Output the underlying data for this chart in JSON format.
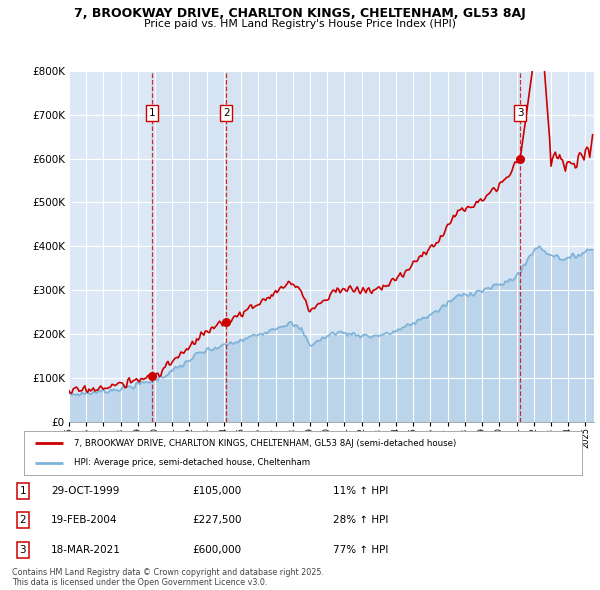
{
  "title_line1": "7, BROOKWAY DRIVE, CHARLTON KINGS, CHELTENHAM, GL53 8AJ",
  "title_line2": "Price paid vs. HM Land Registry's House Price Index (HPI)",
  "background_color": "#ffffff",
  "plot_bg_color": "#dce8f5",
  "grid_color": "#ffffff",
  "purchases": [
    {
      "label": "1",
      "date_num": 1999.83,
      "price": 105000,
      "note": "11% ↑ HPI",
      "date_str": "29-OCT-1999"
    },
    {
      "label": "2",
      "date_num": 2004.13,
      "price": 227500,
      "note": "28% ↑ HPI",
      "date_str": "19-FEB-2004"
    },
    {
      "label": "3",
      "date_num": 2021.21,
      "price": 600000,
      "note": "77% ↑ HPI",
      "date_str": "18-MAR-2021"
    }
  ],
  "legend_line1": "7, BROOKWAY DRIVE, CHARLTON KINGS, CHELTENHAM, GL53 8AJ (semi-detached house)",
  "legend_line2": "HPI: Average price, semi-detached house, Cheltenham",
  "footer": "Contains HM Land Registry data © Crown copyright and database right 2025.\nThis data is licensed under the Open Government Licence v3.0.",
  "hpi_color": "#7fb2d8",
  "price_color": "#cc0000",
  "highlight_color": "#cfe0f0",
  "ylim_max": 800000,
  "xlim_start": 1995.0,
  "xlim_end": 2025.5
}
